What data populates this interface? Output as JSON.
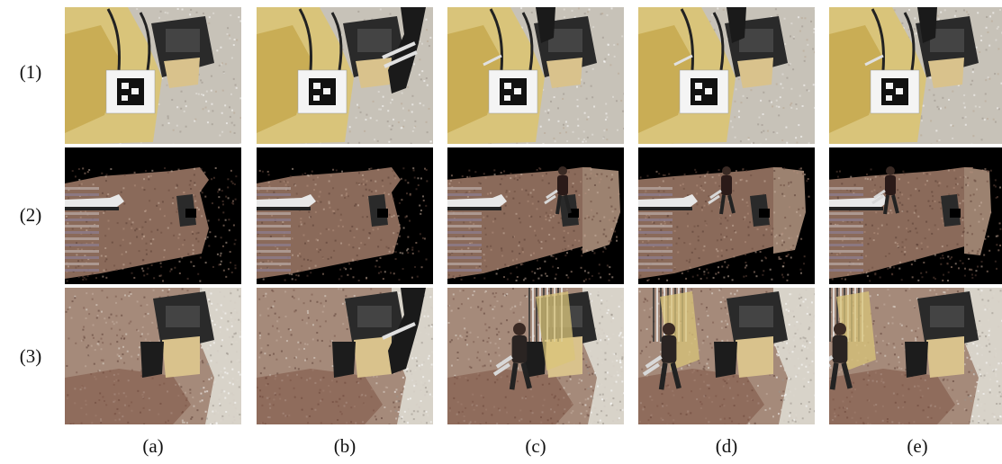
{
  "rows": [
    {
      "label": "(1)",
      "kind": "camera-image"
    },
    {
      "label": "(2)",
      "kind": "projected-view"
    },
    {
      "label": "(3)",
      "kind": "blended-view"
    }
  ],
  "columns": [
    {
      "label": "(a)",
      "person": "none"
    },
    {
      "label": "(b)",
      "person": "arm"
    },
    {
      "label": "(c)",
      "person": "walking"
    },
    {
      "label": "(d)",
      "person": "walking"
    },
    {
      "label": "(e)",
      "person": "walking"
    }
  ],
  "colors": {
    "machine_yellow": "#d9c47a",
    "gravel": "#c7c2b8",
    "dirt": "#8a6a5a",
    "black": "#000000",
    "case": "#2a2a2a"
  }
}
